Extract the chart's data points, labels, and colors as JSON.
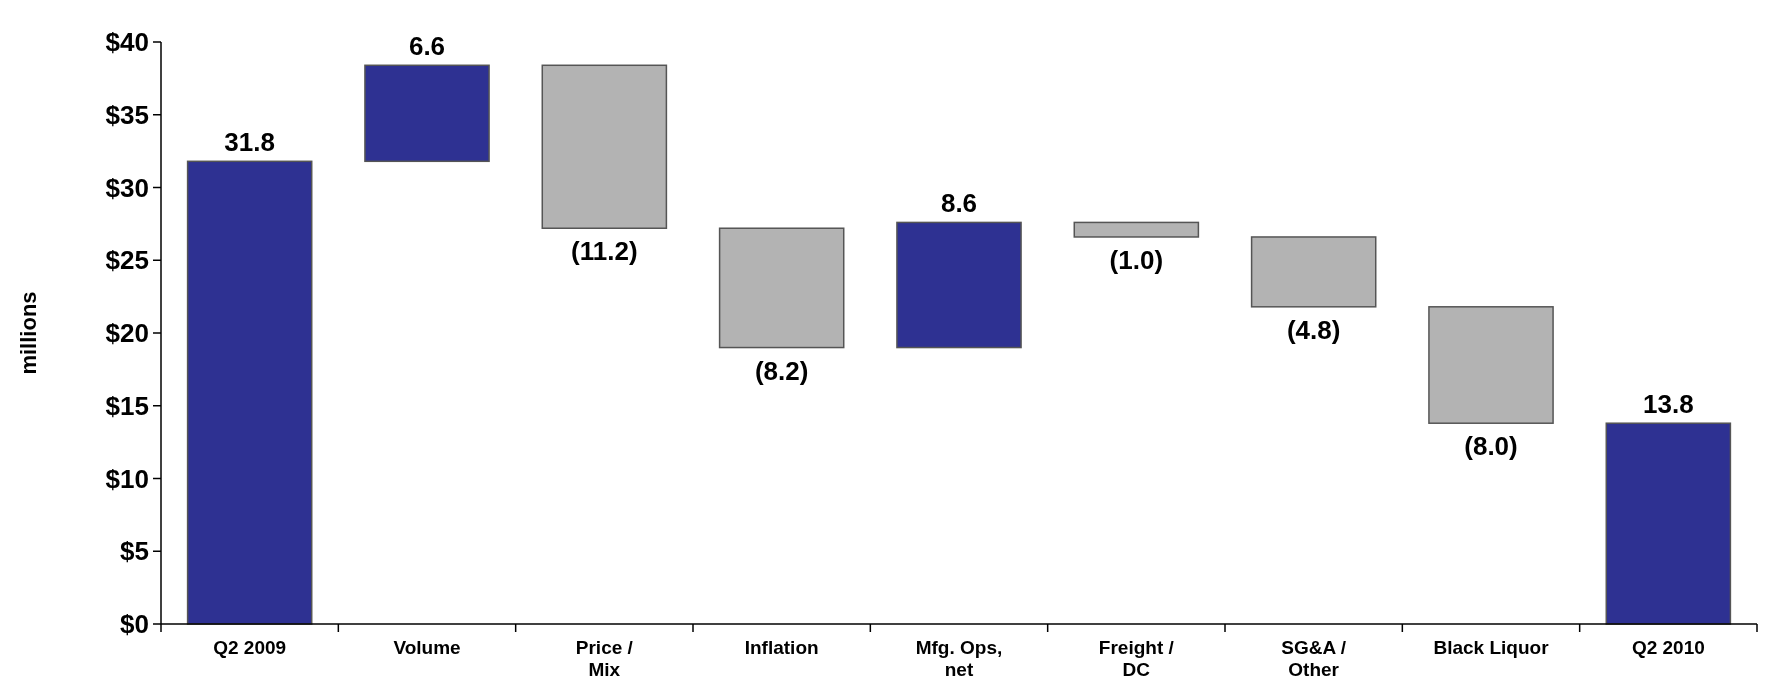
{
  "chart_data": {
    "type": "bar",
    "ylabel": "millions",
    "categories": [
      "Q2 2009",
      "Volume",
      "Price /\nMix",
      "Inflation",
      "Mfg. Ops,\nnet",
      "Freight /\nDC",
      "SG&A /\nOther",
      "Black Liquor",
      "Q2 2010"
    ],
    "values": [
      31.8,
      6.6,
      -11.2,
      -8.2,
      8.6,
      -1.0,
      -4.8,
      -8.0,
      13.8
    ],
    "base": [
      0,
      31.8,
      38.4,
      27.2,
      19.0,
      27.6,
      26.6,
      21.8,
      0
    ],
    "colors": [
      "#2e3192",
      "#2e3192",
      "#b3b3b3",
      "#b3b3b3",
      "#2e3192",
      "#b3b3b3",
      "#b3b3b3",
      "#b3b3b3",
      "#2e3192"
    ],
    "value_labels": [
      "31.8",
      "6.6",
      "(11.2)",
      "(8.2)",
      "8.6",
      "(1.0)",
      "(4.8)",
      "(8.0)",
      "13.8"
    ],
    "ylim": [
      0,
      40
    ],
    "yticks": [
      {
        "value": 0,
        "label": "$0"
      },
      {
        "value": 5,
        "label": "$5"
      },
      {
        "value": 10,
        "label": "$10"
      },
      {
        "value": 15,
        "label": "$15"
      },
      {
        "value": 20,
        "label": "$20"
      },
      {
        "value": 25,
        "label": "$25"
      },
      {
        "value": 30,
        "label": "$30"
      },
      {
        "value": 35,
        "label": "$35"
      },
      {
        "value": 40,
        "label": "$40"
      }
    ],
    "grid": false
  }
}
